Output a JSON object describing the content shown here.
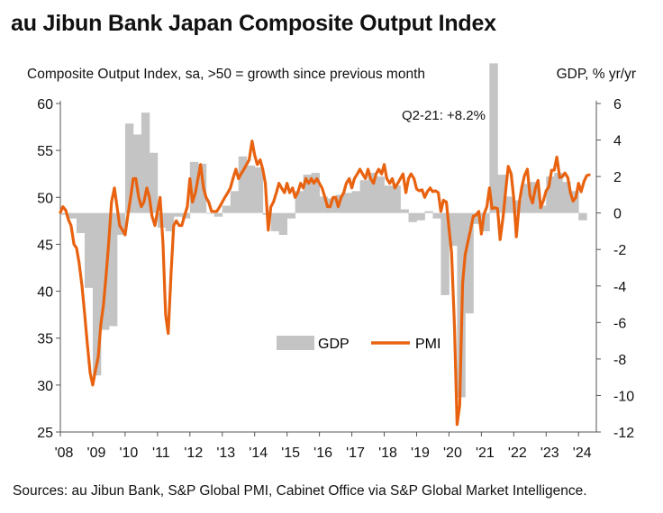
{
  "title": "au Jibun Bank Japan Composite Output Index",
  "subtitle_left": "Composite Output Index, sa, >50 = growth since previous month",
  "subtitle_right": "GDP, % yr/yr",
  "source": "Sources: au Jibun Bank, S&P Global PMI, Cabinet Office via S&P Global Market Intelligence.",
  "colors": {
    "pmi": "#e8620f",
    "gdp": "#c4c4c4",
    "axis": "#555555"
  },
  "chart_data": {
    "type": "line",
    "annotation": "Q2-21: +8.2%",
    "x_tick_labels": [
      "'08",
      "'09",
      "'10",
      "'11",
      "'12",
      "'13",
      "'14",
      "'15",
      "'16",
      "'17",
      "'18",
      "'19",
      "'20",
      "'21",
      "'22",
      "'23",
      "'24"
    ],
    "x_ticks": [
      2008,
      2009,
      2010,
      2011,
      2012,
      2013,
      2014,
      2015,
      2016,
      2017,
      2018,
      2019,
      2020,
      2021,
      2022,
      2023,
      2024
    ],
    "xlim": [
      2008,
      2024.55
    ],
    "y_left": {
      "label": "Composite Output Index",
      "ticks": [
        25,
        30,
        35,
        40,
        45,
        50,
        55,
        60
      ],
      "ylim": [
        25,
        60
      ]
    },
    "y_right": {
      "label": "GDP, % yr/yr",
      "ticks": [
        6,
        4,
        2,
        0,
        -2,
        -4,
        -6,
        -8,
        -10,
        -12
      ],
      "ylim": [
        -12,
        6
      ]
    },
    "legend": {
      "position": "center-bottom",
      "gdp_label": "GDP",
      "pmi_label": "PMI"
    },
    "series": [
      {
        "name": "GDP",
        "axis": "right",
        "kind": "step-area",
        "points": [
          [
            2008.0,
            -0.1
          ],
          [
            2008.25,
            -0.3
          ],
          [
            2008.5,
            -1.1
          ],
          [
            2008.75,
            -4.1
          ],
          [
            2009.0,
            -8.9
          ],
          [
            2009.25,
            -6.4
          ],
          [
            2009.5,
            -6.2
          ],
          [
            2009.75,
            -1.2
          ],
          [
            2010.0,
            4.9
          ],
          [
            2010.25,
            4.3
          ],
          [
            2010.5,
            5.5
          ],
          [
            2010.75,
            3.3
          ],
          [
            2011.0,
            -0.8
          ],
          [
            2011.25,
            -1.0
          ],
          [
            2011.5,
            -0.2
          ],
          [
            2011.75,
            -0.3
          ],
          [
            2012.0,
            2.8
          ],
          [
            2012.25,
            2.7
          ],
          [
            2012.5,
            0.0
          ],
          [
            2012.75,
            -0.2
          ],
          [
            2013.0,
            0.4
          ],
          [
            2013.25,
            1.2
          ],
          [
            2013.5,
            3.1
          ],
          [
            2013.75,
            2.6
          ],
          [
            2014.0,
            2.5
          ],
          [
            2014.25,
            -0.1
          ],
          [
            2014.5,
            -1.0
          ],
          [
            2014.75,
            -1.2
          ],
          [
            2015.0,
            -0.3
          ],
          [
            2015.25,
            1.2
          ],
          [
            2015.5,
            2.1
          ],
          [
            2015.75,
            2.2
          ],
          [
            2016.0,
            0.9
          ],
          [
            2016.25,
            0.8
          ],
          [
            2016.5,
            1.0
          ],
          [
            2016.75,
            1.1
          ],
          [
            2017.0,
            1.2
          ],
          [
            2017.25,
            1.8
          ],
          [
            2017.5,
            2.2
          ],
          [
            2017.75,
            2.0
          ],
          [
            2018.0,
            1.5
          ],
          [
            2018.25,
            1.5
          ],
          [
            2018.5,
            0.2
          ],
          [
            2018.75,
            -0.5
          ],
          [
            2019.0,
            -0.4
          ],
          [
            2019.25,
            0.1
          ],
          [
            2019.5,
            -0.3
          ],
          [
            2019.75,
            -4.5
          ],
          [
            2020.0,
            -1.8
          ],
          [
            2020.25,
            -10.1
          ],
          [
            2020.5,
            -5.5
          ],
          [
            2020.75,
            -0.6
          ],
          [
            2021.0,
            -1.0
          ],
          [
            2021.25,
            8.2
          ],
          [
            2021.5,
            2.1
          ],
          [
            2021.75,
            0.9
          ],
          [
            2022.0,
            0.7
          ],
          [
            2022.25,
            1.6
          ],
          [
            2022.5,
            1.7
          ],
          [
            2022.75,
            0.4
          ],
          [
            2023.0,
            2.0
          ],
          [
            2023.25,
            2.2
          ],
          [
            2023.5,
            1.7
          ],
          [
            2023.75,
            1.2
          ],
          [
            2024.0,
            -0.4
          ]
        ]
      },
      {
        "name": "PMI",
        "axis": "left",
        "kind": "line",
        "points": [
          [
            2008.0,
            48.4
          ],
          [
            2008.08,
            49.0
          ],
          [
            2008.17,
            48.6
          ],
          [
            2008.25,
            47.6
          ],
          [
            2008.33,
            47.0
          ],
          [
            2008.42,
            45.0
          ],
          [
            2008.5,
            44.6
          ],
          [
            2008.58,
            43.0
          ],
          [
            2008.67,
            40.5
          ],
          [
            2008.75,
            37.6
          ],
          [
            2008.83,
            34.5
          ],
          [
            2008.92,
            31.3
          ],
          [
            2009.0,
            30.0
          ],
          [
            2009.08,
            31.5
          ],
          [
            2009.17,
            33.0
          ],
          [
            2009.25,
            36.5
          ],
          [
            2009.33,
            38.5
          ],
          [
            2009.42,
            42.0
          ],
          [
            2009.5,
            45.5
          ],
          [
            2009.58,
            49.5
          ],
          [
            2009.67,
            51.0
          ],
          [
            2009.75,
            49.0
          ],
          [
            2009.83,
            47.0
          ],
          [
            2009.92,
            46.5
          ],
          [
            2010.0,
            46.0
          ],
          [
            2010.08,
            48.0
          ],
          [
            2010.17,
            50.0
          ],
          [
            2010.25,
            52.0
          ],
          [
            2010.33,
            52.0
          ],
          [
            2010.42,
            50.0
          ],
          [
            2010.5,
            49.0
          ],
          [
            2010.58,
            49.5
          ],
          [
            2010.67,
            51.0
          ],
          [
            2010.75,
            50.0
          ],
          [
            2010.83,
            48.0
          ],
          [
            2010.92,
            47.0
          ],
          [
            2011.0,
            48.5
          ],
          [
            2011.08,
            50.0
          ],
          [
            2011.17,
            45.0
          ],
          [
            2011.25,
            37.5
          ],
          [
            2011.33,
            35.5
          ],
          [
            2011.42,
            42.0
          ],
          [
            2011.5,
            47.0
          ],
          [
            2011.58,
            47.5
          ],
          [
            2011.67,
            47.0
          ],
          [
            2011.75,
            47.0
          ],
          [
            2011.83,
            48.0
          ],
          [
            2011.92,
            49.0
          ],
          [
            2012.0,
            52.0
          ],
          [
            2012.08,
            49.5
          ],
          [
            2012.17,
            50.5
          ],
          [
            2012.25,
            52.0
          ],
          [
            2012.33,
            53.5
          ],
          [
            2012.42,
            51.0
          ],
          [
            2012.5,
            50.0
          ],
          [
            2012.58,
            49.5
          ],
          [
            2012.67,
            48.5
          ],
          [
            2012.75,
            48.5
          ],
          [
            2012.83,
            48.5
          ],
          [
            2012.92,
            49.0
          ],
          [
            2013.0,
            49.5
          ],
          [
            2013.08,
            50.0
          ],
          [
            2013.17,
            50.5
          ],
          [
            2013.25,
            51.0
          ],
          [
            2013.33,
            52.0
          ],
          [
            2013.42,
            53.0
          ],
          [
            2013.5,
            52.0
          ],
          [
            2013.58,
            52.5
          ],
          [
            2013.67,
            53.0
          ],
          [
            2013.75,
            53.5
          ],
          [
            2013.83,
            54.0
          ],
          [
            2013.92,
            56.0
          ],
          [
            2014.0,
            54.5
          ],
          [
            2014.08,
            53.5
          ],
          [
            2014.17,
            54.0
          ],
          [
            2014.25,
            53.0
          ],
          [
            2014.33,
            51.5
          ],
          [
            2014.42,
            46.5
          ],
          [
            2014.5,
            49.0
          ],
          [
            2014.58,
            49.5
          ],
          [
            2014.67,
            50.5
          ],
          [
            2014.75,
            51.5
          ],
          [
            2014.83,
            51.0
          ],
          [
            2014.92,
            50.5
          ],
          [
            2015.0,
            51.5
          ],
          [
            2015.08,
            50.5
          ],
          [
            2015.17,
            51.0
          ],
          [
            2015.25,
            50.0
          ],
          [
            2015.33,
            50.5
          ],
          [
            2015.42,
            51.5
          ],
          [
            2015.5,
            51.0
          ],
          [
            2015.58,
            52.0
          ],
          [
            2015.67,
            51.5
          ],
          [
            2015.75,
            52.0
          ],
          [
            2015.83,
            51.5
          ],
          [
            2015.92,
            52.0
          ],
          [
            2016.0,
            51.5
          ],
          [
            2016.08,
            51.0
          ],
          [
            2016.17,
            50.0
          ],
          [
            2016.25,
            49.0
          ],
          [
            2016.33,
            49.0
          ],
          [
            2016.42,
            50.0
          ],
          [
            2016.5,
            50.0
          ],
          [
            2016.58,
            49.0
          ],
          [
            2016.67,
            50.0
          ],
          [
            2016.75,
            50.5
          ],
          [
            2016.83,
            51.5
          ],
          [
            2016.92,
            52.0
          ],
          [
            2017.0,
            51.0
          ],
          [
            2017.08,
            52.0
          ],
          [
            2017.17,
            52.5
          ],
          [
            2017.25,
            53.0
          ],
          [
            2017.33,
            52.5
          ],
          [
            2017.42,
            52.0
          ],
          [
            2017.5,
            53.0
          ],
          [
            2017.58,
            52.0
          ],
          [
            2017.67,
            51.5
          ],
          [
            2017.75,
            52.5
          ],
          [
            2017.83,
            53.0
          ],
          [
            2017.92,
            52.5
          ],
          [
            2018.0,
            53.5
          ],
          [
            2018.08,
            52.0
          ],
          [
            2018.17,
            51.5
          ],
          [
            2018.25,
            52.0
          ],
          [
            2018.33,
            51.0
          ],
          [
            2018.42,
            51.5
          ],
          [
            2018.5,
            52.0
          ],
          [
            2018.58,
            52.5
          ],
          [
            2018.67,
            50.5
          ],
          [
            2018.75,
            52.0
          ],
          [
            2018.83,
            52.5
          ],
          [
            2018.92,
            52.0
          ],
          [
            2019.0,
            50.9
          ],
          [
            2019.08,
            50.7
          ],
          [
            2019.17,
            50.8
          ],
          [
            2019.25,
            50.0
          ],
          [
            2019.33,
            50.6
          ],
          [
            2019.42,
            51.0
          ],
          [
            2019.5,
            50.6
          ],
          [
            2019.58,
            50.7
          ],
          [
            2019.67,
            50.5
          ],
          [
            2019.75,
            48.5
          ],
          [
            2019.83,
            49.7
          ],
          [
            2019.92,
            49.5
          ],
          [
            2020.0,
            46.7
          ],
          [
            2020.08,
            44.1
          ],
          [
            2020.17,
            36.2
          ],
          [
            2020.25,
            25.8
          ],
          [
            2020.33,
            27.8
          ],
          [
            2020.42,
            40.8
          ],
          [
            2020.5,
            43.9
          ],
          [
            2020.58,
            45.2
          ],
          [
            2020.67,
            46.6
          ],
          [
            2020.75,
            48.0
          ],
          [
            2020.83,
            48.1
          ],
          [
            2020.92,
            48.5
          ],
          [
            2021.0,
            46.1
          ],
          [
            2021.08,
            48.2
          ],
          [
            2021.17,
            49.0
          ],
          [
            2021.25,
            51.0
          ],
          [
            2021.33,
            48.8
          ],
          [
            2021.42,
            48.9
          ],
          [
            2021.5,
            48.8
          ],
          [
            2021.58,
            45.5
          ],
          [
            2021.67,
            47.9
          ],
          [
            2021.75,
            50.7
          ],
          [
            2021.83,
            53.3
          ],
          [
            2021.92,
            52.5
          ],
          [
            2022.0,
            49.9
          ],
          [
            2022.08,
            45.8
          ],
          [
            2022.17,
            49.4
          ],
          [
            2022.25,
            51.1
          ],
          [
            2022.33,
            52.3
          ],
          [
            2022.42,
            53.0
          ],
          [
            2022.5,
            50.2
          ],
          [
            2022.58,
            49.4
          ],
          [
            2022.67,
            51.0
          ],
          [
            2022.75,
            51.8
          ],
          [
            2022.83,
            48.9
          ],
          [
            2022.92,
            49.7
          ],
          [
            2023.0,
            50.7
          ],
          [
            2023.08,
            51.1
          ],
          [
            2023.17,
            52.9
          ],
          [
            2023.25,
            52.9
          ],
          [
            2023.33,
            54.3
          ],
          [
            2023.42,
            52.1
          ],
          [
            2023.5,
            52.2
          ],
          [
            2023.58,
            52.6
          ],
          [
            2023.67,
            52.1
          ],
          [
            2023.75,
            50.5
          ],
          [
            2023.83,
            49.6
          ],
          [
            2023.92,
            50.0
          ],
          [
            2024.0,
            51.5
          ],
          [
            2024.08,
            50.6
          ],
          [
            2024.17,
            51.7
          ],
          [
            2024.25,
            52.3
          ],
          [
            2024.33,
            52.4
          ]
        ]
      }
    ]
  }
}
